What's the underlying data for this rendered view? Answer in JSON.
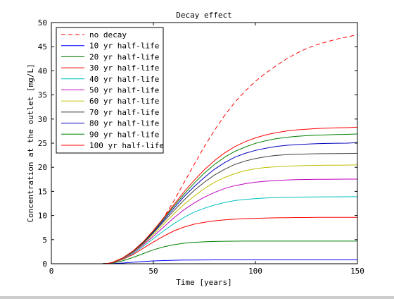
{
  "chart_data": {
    "type": "line",
    "title": "Decay effect",
    "xlabel": "Time [years]",
    "ylabel": "Concentration at the outlet [mg/L]",
    "xlim": [
      0,
      150
    ],
    "ylim": [
      0,
      50
    ],
    "xticks": [
      0,
      50,
      100,
      150
    ],
    "yticks": [
      0,
      5,
      10,
      15,
      20,
      25,
      30,
      35,
      40,
      45,
      50
    ],
    "grid": false,
    "legend_position": "top-left",
    "x": [
      0,
      10,
      20,
      25,
      28,
      30,
      35,
      40,
      45,
      50,
      55,
      60,
      65,
      70,
      75,
      80,
      85,
      90,
      95,
      100,
      105,
      110,
      115,
      120,
      125,
      130,
      135,
      140,
      145,
      150
    ],
    "series": [
      {
        "name": "no decay",
        "color": "#ff0000",
        "dash": true,
        "values": [
          0,
          0,
          0,
          0,
          0.1,
          0.3,
          1.2,
          2.6,
          4.4,
          6.6,
          9.5,
          13.0,
          16.8,
          20.6,
          24.3,
          27.7,
          30.8,
          33.5,
          35.8,
          37.8,
          39.5,
          41.0,
          42.4,
          43.6,
          44.6,
          45.4,
          46.0,
          46.6,
          47.0,
          47.5
        ]
      },
      {
        "name": "10 yr half-life",
        "color": "#0000ff",
        "dash": false,
        "values": [
          0,
          0,
          0,
          0,
          0.02,
          0.05,
          0.15,
          0.3,
          0.45,
          0.58,
          0.66,
          0.72,
          0.76,
          0.78,
          0.79,
          0.8,
          0.8,
          0.8,
          0.8,
          0.8,
          0.8,
          0.8,
          0.8,
          0.8,
          0.8,
          0.8,
          0.8,
          0.8,
          0.8,
          0.8
        ]
      },
      {
        "name": "20 yr half-life",
        "color": "#008000",
        "dash": false,
        "values": [
          0,
          0,
          0,
          0,
          0.05,
          0.15,
          0.6,
          1.3,
          2.1,
          2.9,
          3.5,
          3.95,
          4.25,
          4.45,
          4.55,
          4.62,
          4.66,
          4.68,
          4.7,
          4.7,
          4.7,
          4.7,
          4.7,
          4.7,
          4.7,
          4.7,
          4.7,
          4.7,
          4.7,
          4.7
        ]
      },
      {
        "name": "30 yr half-life",
        "color": "#ff0000",
        "dash": false,
        "values": [
          0,
          0,
          0,
          0,
          0.06,
          0.2,
          0.9,
          1.9,
          3.2,
          4.5,
          5.7,
          6.8,
          7.6,
          8.2,
          8.6,
          8.9,
          9.1,
          9.25,
          9.35,
          9.42,
          9.48,
          9.52,
          9.55,
          9.57,
          9.58,
          9.6,
          9.6,
          9.6,
          9.6,
          9.6
        ]
      },
      {
        "name": "40 yr half-life",
        "color": "#00bfbf",
        "dash": false,
        "values": [
          0,
          0,
          0,
          0,
          0.07,
          0.22,
          1.0,
          2.1,
          3.6,
          5.2,
          6.8,
          8.3,
          9.6,
          10.7,
          11.5,
          12.2,
          12.7,
          13.1,
          13.35,
          13.5,
          13.62,
          13.7,
          13.76,
          13.8,
          13.83,
          13.85,
          13.87,
          13.88,
          13.89,
          13.9
        ]
      },
      {
        "name": "50 yr half-life",
        "color": "#bf00bf",
        "dash": false,
        "values": [
          0,
          0,
          0,
          0,
          0.07,
          0.24,
          1.05,
          2.3,
          3.9,
          5.7,
          7.6,
          9.5,
          11.2,
          12.6,
          13.8,
          14.8,
          15.6,
          16.2,
          16.6,
          16.9,
          17.1,
          17.25,
          17.35,
          17.42,
          17.47,
          17.5,
          17.52,
          17.53,
          17.54,
          17.55
        ]
      },
      {
        "name": "60 yr half-life",
        "color": "#bfbf00",
        "dash": false,
        "values": [
          0,
          0,
          0,
          0,
          0.08,
          0.25,
          1.1,
          2.4,
          4.1,
          6.1,
          8.2,
          10.3,
          12.3,
          14.0,
          15.6,
          16.9,
          17.9,
          18.7,
          19.3,
          19.7,
          19.95,
          20.1,
          20.2,
          20.3,
          20.35,
          20.4,
          20.42,
          20.44,
          20.46,
          20.5
        ]
      },
      {
        "name": "70 yr half-life",
        "color": "#404040",
        "dash": false,
        "values": [
          0,
          0,
          0,
          0,
          0.08,
          0.26,
          1.15,
          2.5,
          4.25,
          6.4,
          8.7,
          11.0,
          13.2,
          15.2,
          16.9,
          18.4,
          19.6,
          20.6,
          21.3,
          21.8,
          22.2,
          22.45,
          22.6,
          22.7,
          22.75,
          22.8,
          22.82,
          22.84,
          22.86,
          22.9
        ]
      },
      {
        "name": "80 yr half-life",
        "color": "#0000bf",
        "dash": false,
        "values": [
          0,
          0,
          0,
          0,
          0.08,
          0.27,
          1.18,
          2.55,
          4.35,
          6.6,
          9.0,
          11.5,
          13.9,
          16.0,
          17.9,
          19.6,
          21.0,
          22.1,
          22.9,
          23.5,
          23.95,
          24.3,
          24.55,
          24.7,
          24.8,
          24.88,
          24.94,
          24.98,
          25.0,
          25.1
        ]
      },
      {
        "name": "90 yr half-life",
        "color": "#008000",
        "dash": false,
        "values": [
          0,
          0,
          0,
          0,
          0.09,
          0.28,
          1.2,
          2.6,
          4.45,
          6.75,
          9.3,
          11.9,
          14.4,
          16.7,
          18.8,
          20.6,
          22.1,
          23.3,
          24.2,
          24.95,
          25.5,
          25.9,
          26.2,
          26.4,
          26.55,
          26.65,
          26.72,
          26.78,
          26.83,
          26.9
        ]
      },
      {
        "name": "100 yr half-life",
        "color": "#ff0000",
        "dash": false,
        "values": [
          0,
          0,
          0,
          0,
          0.09,
          0.29,
          1.22,
          2.65,
          4.55,
          6.9,
          9.5,
          12.2,
          14.9,
          17.3,
          19.5,
          21.4,
          23.0,
          24.3,
          25.3,
          26.1,
          26.7,
          27.15,
          27.5,
          27.75,
          27.9,
          28.02,
          28.1,
          28.17,
          28.22,
          28.3
        ]
      }
    ]
  }
}
